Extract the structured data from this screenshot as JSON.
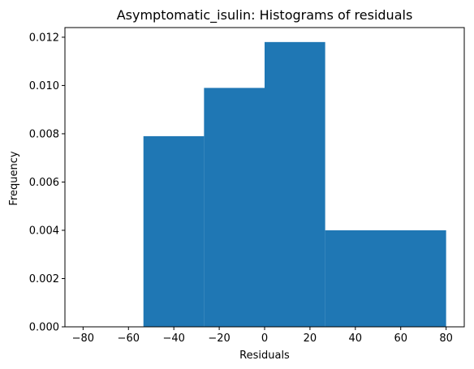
{
  "chart_data": {
    "type": "histogram",
    "title": "Asymptomatic_isulin: Histograms of residuals",
    "xlabel": "Residuals",
    "ylabel": "Frequency",
    "xlim": [
      -88,
      88
    ],
    "ylim": [
      0,
      0.0124
    ],
    "xticks": [
      -80,
      -60,
      -40,
      -20,
      0,
      20,
      40,
      60,
      80
    ],
    "xtick_labels": [
      "−80",
      "−60",
      "−40",
      "−20",
      "0",
      "20",
      "40",
      "60",
      "80"
    ],
    "yticks": [
      0.0,
      0.002,
      0.004,
      0.006,
      0.008,
      0.01,
      0.012
    ],
    "ytick_labels": [
      "0.000",
      "0.002",
      "0.004",
      "0.006",
      "0.008",
      "0.010",
      "0.012"
    ],
    "bins": [
      {
        "x0": -53.4,
        "x1": -26.7,
        "value": 0.0079
      },
      {
        "x0": -26.7,
        "x1": 0.0,
        "value": 0.0099
      },
      {
        "x0": 0.0,
        "x1": 26.7,
        "value": 0.0118
      },
      {
        "x0": 26.7,
        "x1": 80.0,
        "value": 0.004
      }
    ],
    "color": "#1f77b4",
    "grid": false
  }
}
